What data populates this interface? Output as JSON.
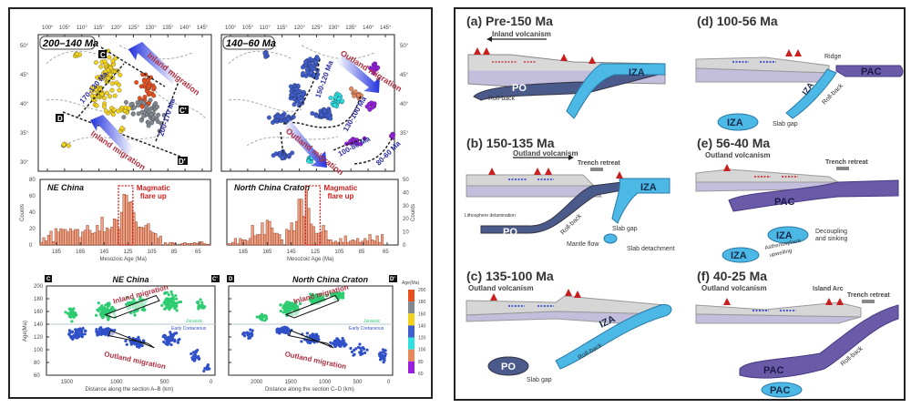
{
  "left_figure": {
    "maps": [
      {
        "label": "200–140 Ma",
        "lon_ticks": [
          "100°",
          "105°",
          "110°",
          "115°",
          "120°",
          "125°",
          "130°",
          "135°",
          "140°",
          "145°"
        ],
        "lat_ticks": [
          "50°",
          "45°",
          "40°",
          "35°",
          "30°"
        ],
        "section_labels": [
          "C",
          "C'",
          "D",
          "D'"
        ],
        "annotations": [
          "Inland migration",
          "Inland migration",
          "170-130 Ma",
          "200-170 Ma"
        ]
      },
      {
        "label": "140–60 Ma",
        "lon_ticks": [
          "100°",
          "105°",
          "110°",
          "115°",
          "120°",
          "125°",
          "130°",
          "135°",
          "140°",
          "145°"
        ],
        "lat_ticks": [
          "50°",
          "45°",
          "40°",
          "35°"
        ],
        "annotations": [
          "Outland migration",
          "Outland migration",
          "150-120 Ma",
          "130-100 Ma",
          "100-80 Ma",
          "80-60 Ma"
        ]
      }
    ],
    "legend": {
      "title": "Age(Ma)",
      "ticks": [
        "200",
        "180",
        "160",
        "140",
        "120",
        "100",
        "80",
        "60"
      ],
      "colors": [
        "#e8501e",
        "#808890",
        "#f2d21a",
        "#3f5fcf",
        "#2ee0e0",
        "#e8875a",
        "#9a1fe0"
      ]
    }
  },
  "chart_data": [
    {
      "type": "bar",
      "title": "NE China",
      "annotation": "Magmatic flare up",
      "xlabel": "Mesozoic Age (Ma)",
      "ylabel": "Counts",
      "x_ticks": [
        "185",
        "165",
        "145",
        "125",
        "105",
        "85",
        "65"
      ],
      "y_ticks": [
        "0",
        "20",
        "40",
        "60",
        "80"
      ],
      "xlim": [
        200,
        60
      ],
      "ylim": [
        0,
        80
      ],
      "bin_width": 2,
      "values": [
        3,
        9,
        5,
        12,
        17,
        4,
        20,
        16,
        20,
        19,
        19,
        16,
        20,
        17,
        19,
        19,
        9,
        16,
        18,
        24,
        18,
        14,
        15,
        24,
        17,
        34,
        16,
        21,
        19,
        22,
        32,
        31,
        20,
        40,
        62,
        61,
        52,
        53,
        40,
        28,
        22,
        22,
        21,
        24,
        26,
        17,
        15,
        14,
        8,
        11,
        0,
        3,
        1,
        3,
        3,
        2,
        0,
        1,
        2,
        3,
        2,
        2,
        2,
        3,
        2,
        4,
        4,
        2,
        1,
        1
      ]
    },
    {
      "type": "bar",
      "title": "North China Craton",
      "annotation": "Magmatic flare up",
      "xlabel": "Mesozoic Age (Ma)",
      "ylabel": "Counts",
      "x_ticks": [
        "185",
        "165",
        "145",
        "125",
        "105",
        "85",
        "65"
      ],
      "y_ticks": [
        "0",
        "10",
        "20",
        "30",
        "40",
        "50"
      ],
      "xlim": [
        200,
        60
      ],
      "ylim": [
        0,
        50
      ],
      "bin_width": 2,
      "values": [
        1,
        1,
        2,
        5,
        1,
        5,
        4,
        4,
        3,
        5,
        15,
        7,
        8,
        8,
        17,
        8,
        19,
        18,
        13,
        9,
        9,
        8,
        4,
        0,
        12,
        11,
        17,
        11,
        18,
        35,
        35,
        22,
        42,
        28,
        16,
        14,
        9,
        9,
        10,
        15,
        11,
        4,
        4,
        2,
        3,
        2,
        5,
        2,
        7,
        2,
        3,
        4,
        3,
        5,
        2,
        3,
        5,
        3,
        8,
        4,
        3,
        7,
        2,
        8,
        0,
        0,
        0,
        0,
        0,
        0
      ]
    },
    {
      "type": "scatter",
      "title": "NE China",
      "section_start": "C",
      "section_end": "C'",
      "xlabel": "Distance along the section A–B (km)",
      "ylabel": "Age(Ma)",
      "x_ticks": [
        "1500",
        "1000",
        "500",
        "0"
      ],
      "y_ticks": [
        "60",
        "80",
        "100",
        "120",
        "140",
        "160",
        "180",
        "200"
      ],
      "xlim": [
        1700,
        0
      ],
      "ylim": [
        60,
        200
      ],
      "boundary_age": 140,
      "boundary_labels": [
        "Jurassic",
        "Early Cretaceous"
      ],
      "annotations": [
        "Inland migration",
        "Outland migration"
      ],
      "series": [
        {
          "name": "Jurassic",
          "color": "#2ecc71",
          "clusters": [
            [
              1450,
              155,
              60,
              14,
              40
            ],
            [
              1100,
              160,
              120,
              18,
              90
            ],
            [
              800,
              170,
              150,
              20,
              70
            ],
            [
              450,
              175,
              150,
              18,
              60
            ],
            [
              150,
              170,
              80,
              12,
              15
            ]
          ]
        },
        {
          "name": "Early Cretaceous",
          "color": "#3050c8",
          "clusters": [
            [
              1400,
              125,
              120,
              12,
              60
            ],
            [
              1100,
              128,
              120,
              8,
              100
            ],
            [
              800,
              112,
              130,
              10,
              50
            ],
            [
              450,
              118,
              120,
              14,
              45
            ],
            [
              200,
              90,
              60,
              16,
              20
            ],
            [
              80,
              70,
              40,
              8,
              12
            ]
          ]
        }
      ]
    },
    {
      "type": "scatter",
      "title": "North China Craton",
      "section_start": "D",
      "section_end": "D'",
      "xlabel": "Distance along the section C–D (km)",
      "ylabel": "Age(Ma)",
      "x_ticks": [
        "2000",
        "1500",
        "1000",
        "500",
        "0"
      ],
      "y_ticks": [
        "60",
        "80",
        "100",
        "120",
        "140",
        "160",
        "180",
        "200"
      ],
      "xlim": [
        2400,
        0
      ],
      "ylim": [
        60,
        200
      ],
      "boundary_age": 140,
      "boundary_labels": [
        "Jurassic",
        "Early Cretaceous"
      ],
      "annotations": [
        "Inland migration",
        "Outland migration"
      ],
      "series": [
        {
          "name": "Jurassic",
          "color": "#2ecc71",
          "clusters": [
            [
              1900,
              150,
              100,
              8,
              20
            ],
            [
              1500,
              165,
              180,
              14,
              100
            ],
            [
              1100,
              180,
              180,
              12,
              80
            ],
            [
              800,
              185,
              150,
              10,
              40
            ]
          ]
        },
        {
          "name": "Early Cretaceous",
          "color": "#3050c8",
          "clusters": [
            [
              2100,
              125,
              120,
              10,
              20
            ],
            [
              1600,
              130,
              160,
              7,
              90
            ],
            [
              1200,
              118,
              160,
              10,
              70
            ],
            [
              800,
              110,
              150,
              10,
              50
            ],
            [
              500,
              100,
              150,
              14,
              20
            ],
            [
              150,
              90,
              80,
              16,
              25
            ]
          ]
        }
      ]
    }
  ],
  "right_figure": {
    "panels": [
      {
        "id": "a",
        "title": "(a) Pre-150 Ma",
        "labels": [
          "Inland volcanism",
          "PO",
          "IZA",
          "Roll-back"
        ]
      },
      {
        "id": "b",
        "title": "(b) 150-135 Ma",
        "labels": [
          "Outland volcanism",
          "Trench retreat",
          "IZA",
          "PO",
          "Roll-back",
          "Slab gap",
          "Mantle flow",
          "Slab detachment",
          "Lithosphere delamination"
        ]
      },
      {
        "id": "c",
        "title": "(c) 135-100 Ma",
        "labels": [
          "Outland volcanism",
          "IZA",
          "Roll-back",
          "PO",
          "Slab gap"
        ]
      },
      {
        "id": "d",
        "title": "(d) 100-56 Ma",
        "labels": [
          "Ridge",
          "PAC",
          "IZA",
          "Roll-back",
          "IZA",
          "Slab gap"
        ]
      },
      {
        "id": "e",
        "title": "(e) 56-40 Ma",
        "labels": [
          "Outland volcanism",
          "Trench retreat",
          "PAC",
          "IZA",
          "Decoupling",
          "and sinking",
          "IZA",
          "Asthenosphere",
          "upwelling"
        ]
      },
      {
        "id": "f",
        "title": "(f) 40-25 Ma",
        "labels": [
          "Outland volcanism",
          "Island Arc",
          "Trench retreat",
          "PAC",
          "Roll-back",
          "PAC"
        ]
      }
    ]
  }
}
